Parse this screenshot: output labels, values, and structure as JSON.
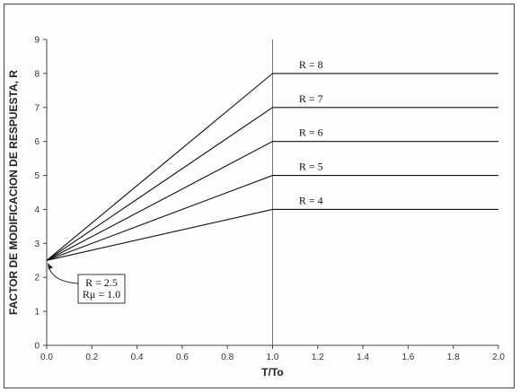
{
  "chart_data": {
    "type": "line",
    "title": "",
    "xlabel": "T/To",
    "ylabel": "FACTOR DE MODIFICACION DE RESPUESTA, R",
    "xlim": [
      0,
      2.0
    ],
    "ylim": [
      0,
      9
    ],
    "x_ticks": [
      "0.0",
      "0.2",
      "0.4",
      "0.6",
      "0.8",
      "1.0",
      "1.2",
      "1.4",
      "1.6",
      "1.8",
      "2.0"
    ],
    "y_ticks": [
      "0",
      "1",
      "2",
      "3",
      "4",
      "5",
      "6",
      "7",
      "8",
      "9"
    ],
    "grid": false,
    "series": [
      {
        "name": "R = 8",
        "x": [
          0,
          1.0,
          2.0
        ],
        "y": [
          2.5,
          8,
          8
        ]
      },
      {
        "name": "R = 7",
        "x": [
          0,
          1.0,
          2.0
        ],
        "y": [
          2.5,
          7,
          7
        ]
      },
      {
        "name": "R = 6",
        "x": [
          0,
          1.0,
          2.0
        ],
        "y": [
          2.5,
          6,
          6
        ]
      },
      {
        "name": "R = 5",
        "x": [
          0,
          1.0,
          2.0
        ],
        "y": [
          2.5,
          5,
          5
        ]
      },
      {
        "name": "R = 4",
        "x": [
          0,
          1.0,
          2.0
        ],
        "y": [
          2.5,
          4,
          4
        ]
      }
    ],
    "vertical_reference_x": 1.0,
    "annotation": {
      "lines": [
        "R = 2.5",
        "Rμ = 1.0"
      ],
      "points_to": [
        0,
        2.5
      ]
    },
    "line_color": "#111111"
  }
}
